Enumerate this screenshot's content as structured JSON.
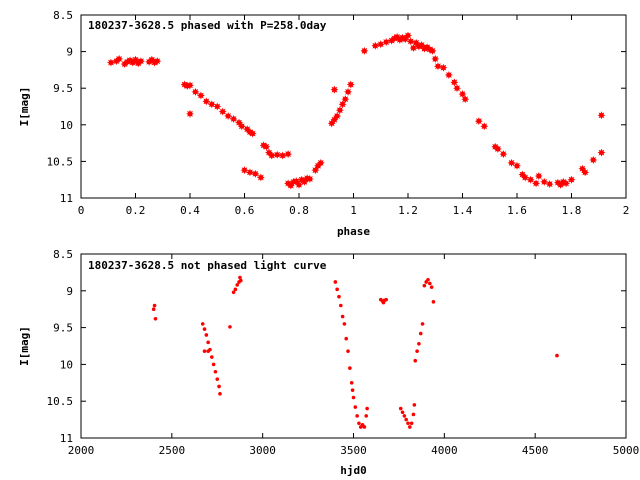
{
  "chart_data": [
    {
      "type": "scatter",
      "title": "180237-3628.5 phased with P=258.0day",
      "xlabel": "phase",
      "ylabel": "I[mag]",
      "xlim": [
        0,
        2
      ],
      "ylim": [
        11,
        8.5
      ],
      "y_inverted": true,
      "grid": false,
      "marker": "star",
      "color": "#ff0000",
      "xticks": [
        "0",
        "0.2",
        "0.4",
        "0.6",
        "0.8",
        "1",
        "1.2",
        "1.4",
        "1.6",
        "1.8",
        "2"
      ],
      "yticks": [
        "8.5",
        "9",
        "9.5",
        "10",
        "10.5",
        "11"
      ],
      "points": [
        [
          0.11,
          9.15
        ],
        [
          0.13,
          9.13
        ],
        [
          0.14,
          9.1
        ],
        [
          0.16,
          9.17
        ],
        [
          0.17,
          9.14
        ],
        [
          0.18,
          9.12
        ],
        [
          0.19,
          9.15
        ],
        [
          0.2,
          9.11
        ],
        [
          0.21,
          9.16
        ],
        [
          0.22,
          9.13
        ],
        [
          0.25,
          9.14
        ],
        [
          0.26,
          9.11
        ],
        [
          0.27,
          9.15
        ],
        [
          0.28,
          9.13
        ],
        [
          0.38,
          9.45
        ],
        [
          0.39,
          9.47
        ],
        [
          0.4,
          9.46
        ],
        [
          0.4,
          9.85
        ],
        [
          0.42,
          9.55
        ],
        [
          0.44,
          9.6
        ],
        [
          0.46,
          9.68
        ],
        [
          0.48,
          9.72
        ],
        [
          0.5,
          9.75
        ],
        [
          0.52,
          9.82
        ],
        [
          0.54,
          9.88
        ],
        [
          0.56,
          9.92
        ],
        [
          0.58,
          9.97
        ],
        [
          0.59,
          10.02
        ],
        [
          0.61,
          10.06
        ],
        [
          0.62,
          10.1
        ],
        [
          0.63,
          10.12
        ],
        [
          0.6,
          10.62
        ],
        [
          0.62,
          10.65
        ],
        [
          0.64,
          10.67
        ],
        [
          0.66,
          10.72
        ],
        [
          0.67,
          10.28
        ],
        [
          0.68,
          10.3
        ],
        [
          0.69,
          10.38
        ],
        [
          0.7,
          10.42
        ],
        [
          0.72,
          10.41
        ],
        [
          0.74,
          10.42
        ],
        [
          0.76,
          10.4
        ],
        [
          0.76,
          10.8
        ],
        [
          0.77,
          10.83
        ],
        [
          0.78,
          10.78
        ],
        [
          0.79,
          10.77
        ],
        [
          0.8,
          10.82
        ],
        [
          0.81,
          10.75
        ],
        [
          0.82,
          10.78
        ],
        [
          0.83,
          10.73
        ],
        [
          0.84,
          10.74
        ],
        [
          0.86,
          10.62
        ],
        [
          0.87,
          10.56
        ],
        [
          0.88,
          10.52
        ],
        [
          0.92,
          9.98
        ],
        [
          0.93,
          9.93
        ],
        [
          0.93,
          9.52
        ],
        [
          0.94,
          9.88
        ],
        [
          0.95,
          9.8
        ],
        [
          0.96,
          9.72
        ],
        [
          0.97,
          9.65
        ],
        [
          0.98,
          9.55
        ],
        [
          0.99,
          9.45
        ],
        [
          1.04,
          8.99
        ],
        [
          1.08,
          8.92
        ],
        [
          1.1,
          8.9
        ],
        [
          1.12,
          8.87
        ],
        [
          1.14,
          8.85
        ],
        [
          1.15,
          8.82
        ],
        [
          1.16,
          8.8
        ],
        [
          1.17,
          8.84
        ],
        [
          1.18,
          8.81
        ],
        [
          1.19,
          8.83
        ],
        [
          1.2,
          8.78
        ],
        [
          1.21,
          8.86
        ],
        [
          1.22,
          8.95
        ],
        [
          1.23,
          8.88
        ],
        [
          1.24,
          8.93
        ],
        [
          1.25,
          8.91
        ],
        [
          1.26,
          8.96
        ],
        [
          1.27,
          8.94
        ],
        [
          1.28,
          8.97
        ],
        [
          1.29,
          8.99
        ],
        [
          1.3,
          9.1
        ],
        [
          1.31,
          9.2
        ],
        [
          1.33,
          9.22
        ],
        [
          1.35,
          9.32
        ],
        [
          1.37,
          9.42
        ],
        [
          1.38,
          9.5
        ],
        [
          1.4,
          9.58
        ],
        [
          1.41,
          9.65
        ],
        [
          1.46,
          9.95
        ],
        [
          1.48,
          10.02
        ],
        [
          1.52,
          10.3
        ],
        [
          1.53,
          10.33
        ],
        [
          1.55,
          10.4
        ],
        [
          1.58,
          10.52
        ],
        [
          1.6,
          10.56
        ],
        [
          1.62,
          10.68
        ],
        [
          1.63,
          10.72
        ],
        [
          1.65,
          10.75
        ],
        [
          1.67,
          10.8
        ],
        [
          1.68,
          10.7
        ],
        [
          1.7,
          10.78
        ],
        [
          1.72,
          10.81
        ],
        [
          1.75,
          10.79
        ],
        [
          1.76,
          10.82
        ],
        [
          1.77,
          10.78
        ],
        [
          1.78,
          10.8
        ],
        [
          1.8,
          10.75
        ],
        [
          1.84,
          10.6
        ],
        [
          1.85,
          10.65
        ],
        [
          1.88,
          10.48
        ],
        [
          1.91,
          10.38
        ],
        [
          1.91,
          9.87
        ]
      ]
    },
    {
      "type": "scatter",
      "title": "180237-3628.5 not phased light curve",
      "xlabel": "hjd0",
      "ylabel": "I[mag]",
      "xlim": [
        2000,
        5000
      ],
      "ylim": [
        11,
        8.5
      ],
      "y_inverted": true,
      "grid": false,
      "marker": "dot",
      "color": "#ff0000",
      "xticks": [
        "2000",
        "2500",
        "3000",
        "3500",
        "4000",
        "4500",
        "5000"
      ],
      "yticks": [
        "8.5",
        "9",
        "9.5",
        "10",
        "10.5",
        "11"
      ],
      "points": [
        [
          2400,
          9.25
        ],
        [
          2405,
          9.2
        ],
        [
          2410,
          9.38
        ],
        [
          2670,
          9.45
        ],
        [
          2680,
          9.52
        ],
        [
          2690,
          9.6
        ],
        [
          2700,
          9.7
        ],
        [
          2710,
          9.8
        ],
        [
          2720,
          9.9
        ],
        [
          2730,
          10.0
        ],
        [
          2740,
          10.1
        ],
        [
          2750,
          10.2
        ],
        [
          2760,
          10.3
        ],
        [
          2765,
          10.4
        ],
        [
          2680,
          9.82
        ],
        [
          2700,
          9.82
        ],
        [
          2820,
          9.49
        ],
        [
          2840,
          9.02
        ],
        [
          2850,
          8.98
        ],
        [
          2860,
          8.92
        ],
        [
          2870,
          8.88
        ],
        [
          2880,
          8.86
        ],
        [
          2875,
          8.82
        ],
        [
          3400,
          8.88
        ],
        [
          3410,
          8.98
        ],
        [
          3420,
          9.08
        ],
        [
          3430,
          9.2
        ],
        [
          3440,
          9.35
        ],
        [
          3450,
          9.45
        ],
        [
          3460,
          9.65
        ],
        [
          3470,
          9.82
        ],
        [
          3480,
          10.05
        ],
        [
          3490,
          10.25
        ],
        [
          3495,
          10.35
        ],
        [
          3500,
          10.45
        ],
        [
          3510,
          10.58
        ],
        [
          3520,
          10.7
        ],
        [
          3530,
          10.8
        ],
        [
          3540,
          10.85
        ],
        [
          3550,
          10.82
        ],
        [
          3560,
          10.85
        ],
        [
          3570,
          10.7
        ],
        [
          3575,
          10.6
        ],
        [
          3650,
          9.12
        ],
        [
          3660,
          9.14
        ],
        [
          3670,
          9.13
        ],
        [
          3680,
          9.12
        ],
        [
          3665,
          9.16
        ],
        [
          3760,
          10.6
        ],
        [
          3770,
          10.65
        ],
        [
          3780,
          10.7
        ],
        [
          3790,
          10.75
        ],
        [
          3800,
          10.8
        ],
        [
          3810,
          10.85
        ],
        [
          3820,
          10.8
        ],
        [
          3830,
          10.68
        ],
        [
          3835,
          10.55
        ],
        [
          3840,
          9.95
        ],
        [
          3850,
          9.82
        ],
        [
          3860,
          9.72
        ],
        [
          3870,
          9.58
        ],
        [
          3880,
          9.45
        ],
        [
          3890,
          8.93
        ],
        [
          3900,
          8.88
        ],
        [
          3910,
          8.85
        ],
        [
          3920,
          8.9
        ],
        [
          3930,
          8.95
        ],
        [
          3940,
          9.15
        ],
        [
          4620,
          9.88
        ]
      ]
    }
  ]
}
